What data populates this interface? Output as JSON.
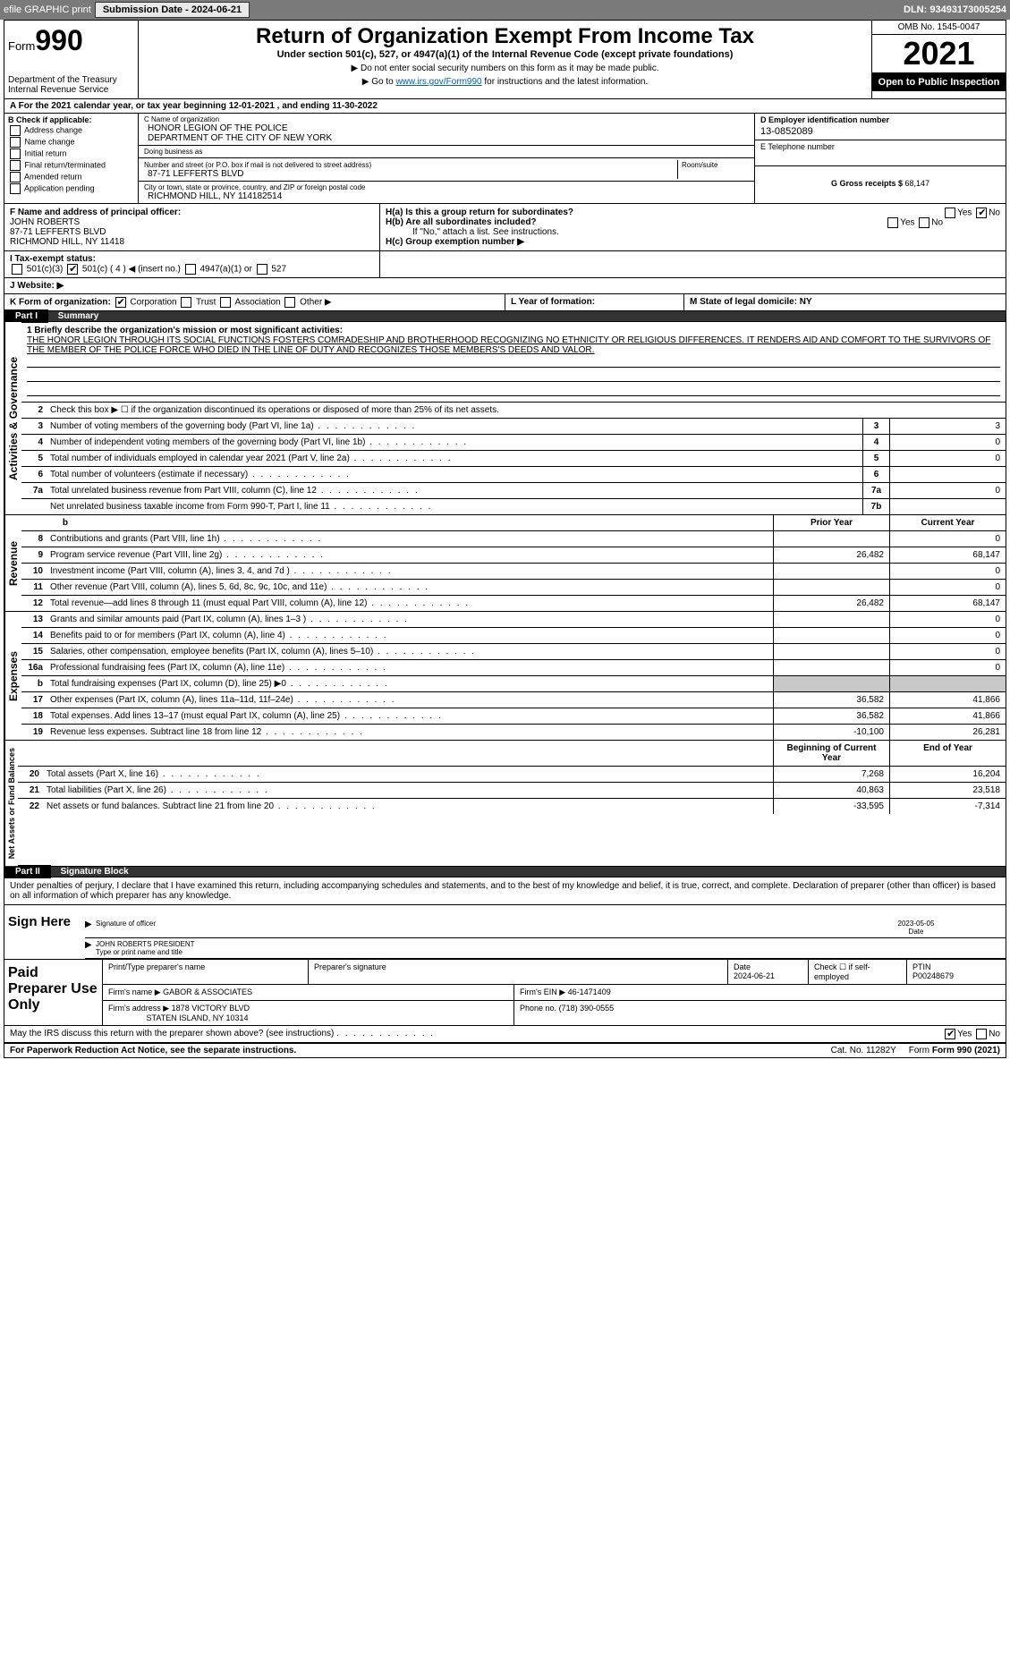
{
  "topbar": {
    "efile": "efile GRAPHIC print",
    "submission_btn": "Submission Date - 2024-06-21",
    "dln": "DLN: 93493173005254"
  },
  "header": {
    "form_label": "Form",
    "form_num": "990",
    "dept": "Department of the Treasury",
    "irs": "Internal Revenue Service",
    "title": "Return of Organization Exempt From Income Tax",
    "sub": "Under section 501(c), 527, or 4947(a)(1) of the Internal Revenue Code (except private foundations)",
    "sub2a": "▶ Do not enter social security numbers on this form as it may be made public.",
    "sub2b": "▶ Go to ",
    "sub2b_link": "www.irs.gov/Form990",
    "sub2c": " for instructions and the latest information.",
    "omb": "OMB No. 1545-0047",
    "year": "2021",
    "inspect": "Open to Public Inspection"
  },
  "row_a": "A For the 2021 calendar year, or tax year beginning 12-01-2021    , and ending 11-30-2022",
  "col_b": {
    "title": "B Check if applicable:",
    "items": [
      "Address change",
      "Name change",
      "Initial return",
      "Final return/terminated",
      "Amended return",
      "Application pending"
    ]
  },
  "col_c": {
    "name_lbl": "C Name of organization",
    "name": "HONOR LEGION OF THE POLICE\nDEPARTMENT OF THE CITY OF NEW YORK",
    "dba_lbl": "Doing business as",
    "dba": "",
    "addr_lbl": "Number and street (or P.O. box if mail is not delivered to street address)",
    "room_lbl": "Room/suite",
    "addr": "87-71 LEFFERTS BLVD",
    "city_lbl": "City or town, state or province, country, and ZIP or foreign postal code",
    "city": "RICHMOND HILL, NY  114182514"
  },
  "col_d": {
    "ein_lbl": "D Employer identification number",
    "ein": "13-0852089",
    "tel_lbl": "E Telephone number",
    "tel": "",
    "gross_lbl": "G Gross receipts $",
    "gross": "68,147"
  },
  "block_f": {
    "lbl": "F Name and address of principal officer:",
    "name": "JOHN ROBERTS",
    "addr1": "87-71 LEFFERTS BLVD",
    "addr2": "RICHMOND HILL, NY  11418"
  },
  "block_h": {
    "ha": "H(a)  Is this a group return for subordinates?",
    "hb": "H(b)  Are all subordinates included?",
    "hb_note": "If \"No,\" attach a list. See instructions.",
    "hc": "H(c)  Group exemption number ▶",
    "yes": "Yes",
    "no": "No"
  },
  "row_i": {
    "lbl": "I  Tax-exempt status:",
    "opts": [
      "501(c)(3)",
      "501(c) ( 4 ) ◀ (insert no.)",
      "4947(a)(1) or",
      "527"
    ]
  },
  "row_j": {
    "lbl": "J  Website: ▶"
  },
  "row_k": {
    "lbl": "K Form of organization:",
    "opts": [
      "Corporation",
      "Trust",
      "Association",
      "Other ▶"
    ],
    "l": "L Year of formation:",
    "m": "M State of legal domicile: NY"
  },
  "part1": {
    "num": "Part I",
    "title": "Summary"
  },
  "summary": {
    "line1_lbl": "1  Briefly describe the organization's mission or most significant activities:",
    "line1_txt": "THE HONOR LEGION THROUGH ITS SOCIAL FUNCTIONS FOSTERS COMRADESHIP AND BROTHERHOOD RECOGNIZING NO ETHNICITY OR RELIGIOUS DIFFERENCES. IT RENDERS AID AND COMFORT TO THE SURVIVORS OF THE MEMBER OF THE POLICE FORCE WHO DIED IN THE LINE OF DUTY AND RECOGNIZES THOSE MEMBERS'S DEEDS AND VALOR.",
    "line2": "Check this box ▶ ☐ if the organization discontinued its operations or disposed of more than 25% of its net assets.",
    "rows_ag": [
      {
        "n": "3",
        "t": "Number of voting members of the governing body (Part VI, line 1a)",
        "b": "3",
        "v": "3"
      },
      {
        "n": "4",
        "t": "Number of independent voting members of the governing body (Part VI, line 1b)",
        "b": "4",
        "v": "0"
      },
      {
        "n": "5",
        "t": "Total number of individuals employed in calendar year 2021 (Part V, line 2a)",
        "b": "5",
        "v": "0"
      },
      {
        "n": "6",
        "t": "Total number of volunteers (estimate if necessary)",
        "b": "6",
        "v": ""
      },
      {
        "n": "7a",
        "t": "Total unrelated business revenue from Part VIII, column (C), line 12",
        "b": "7a",
        "v": "0"
      },
      {
        "n": "",
        "t": "Net unrelated business taxable income from Form 990-T, Part I, line 11",
        "b": "7b",
        "v": ""
      }
    ],
    "col_prior": "Prior Year",
    "col_current": "Current Year",
    "rows_rev": [
      {
        "n": "8",
        "t": "Contributions and grants (Part VIII, line 1h)",
        "p": "",
        "c": "0"
      },
      {
        "n": "9",
        "t": "Program service revenue (Part VIII, line 2g)",
        "p": "26,482",
        "c": "68,147"
      },
      {
        "n": "10",
        "t": "Investment income (Part VIII, column (A), lines 3, 4, and 7d )",
        "p": "",
        "c": "0"
      },
      {
        "n": "11",
        "t": "Other revenue (Part VIII, column (A), lines 5, 6d, 8c, 9c, 10c, and 11e)",
        "p": "",
        "c": "0"
      },
      {
        "n": "12",
        "t": "Total revenue—add lines 8 through 11 (must equal Part VIII, column (A), line 12)",
        "p": "26,482",
        "c": "68,147"
      }
    ],
    "rows_exp": [
      {
        "n": "13",
        "t": "Grants and similar amounts paid (Part IX, column (A), lines 1–3 )",
        "p": "",
        "c": "0"
      },
      {
        "n": "14",
        "t": "Benefits paid to or for members (Part IX, column (A), line 4)",
        "p": "",
        "c": "0"
      },
      {
        "n": "15",
        "t": "Salaries, other compensation, employee benefits (Part IX, column (A), lines 5–10)",
        "p": "",
        "c": "0"
      },
      {
        "n": "16a",
        "t": "Professional fundraising fees (Part IX, column (A), line 11e)",
        "p": "",
        "c": "0"
      },
      {
        "n": "b",
        "t": "Total fundraising expenses (Part IX, column (D), line 25) ▶0",
        "p": "shade",
        "c": "shade"
      },
      {
        "n": "17",
        "t": "Other expenses (Part IX, column (A), lines 11a–11d, 11f–24e)",
        "p": "36,582",
        "c": "41,866"
      },
      {
        "n": "18",
        "t": "Total expenses. Add lines 13–17 (must equal Part IX, column (A), line 25)",
        "p": "36,582",
        "c": "41,866"
      },
      {
        "n": "19",
        "t": "Revenue less expenses. Subtract line 18 from line 12",
        "p": "-10,100",
        "c": "26,281"
      }
    ],
    "col_boy": "Beginning of Current Year",
    "col_eoy": "End of Year",
    "rows_na": [
      {
        "n": "20",
        "t": "Total assets (Part X, line 16)",
        "p": "7,268",
        "c": "16,204"
      },
      {
        "n": "21",
        "t": "Total liabilities (Part X, line 26)",
        "p": "40,863",
        "c": "23,518"
      },
      {
        "n": "22",
        "t": "Net assets or fund balances. Subtract line 21 from line 20",
        "p": "-33,595",
        "c": "-7,314"
      }
    ]
  },
  "vtabs": {
    "ag": "Activities & Governance",
    "rev": "Revenue",
    "exp": "Expenses",
    "na": "Net Assets or Fund Balances"
  },
  "part2": {
    "num": "Part II",
    "title": "Signature Block"
  },
  "sig": {
    "decl": "Under penalties of perjury, I declare that I have examined this return, including accompanying schedules and statements, and to the best of my knowledge and belief, it is true, correct, and complete. Declaration of preparer (other than officer) is based on all information of which preparer has any knowledge.",
    "sign_here": "Sign Here",
    "sig_officer": "Signature of officer",
    "date": "Date",
    "date_val": "2023-05-05",
    "name": "JOHN ROBERTS PRESIDENT",
    "name_lbl": "Type or print name and title"
  },
  "prep": {
    "title": "Paid Preparer Use Only",
    "h1": "Print/Type preparer's name",
    "h2": "Preparer's signature",
    "h3": "Date",
    "h3v": "2024-06-21",
    "h4": "Check ☐ if self-employed",
    "h5_lbl": "PTIN",
    "h5": "P00248679",
    "firm_lbl": "Firm's name    ▶",
    "firm": "GABOR & ASSOCIATES",
    "ein_lbl": "Firm's EIN ▶",
    "ein": "46-1471409",
    "addr_lbl": "Firm's address ▶",
    "addr1": "1878 VICTORY BLVD",
    "addr2": "STATEN ISLAND, NY  10314",
    "phone_lbl": "Phone no.",
    "phone": "(718) 390-0555"
  },
  "discuss": {
    "q": "May the IRS discuss this return with the preparer shown above? (see instructions)",
    "yes": "Yes",
    "no": "No"
  },
  "footer": {
    "pra": "For Paperwork Reduction Act Notice, see the separate instructions.",
    "cat": "Cat. No. 11282Y",
    "form": "Form 990 (2021)"
  }
}
